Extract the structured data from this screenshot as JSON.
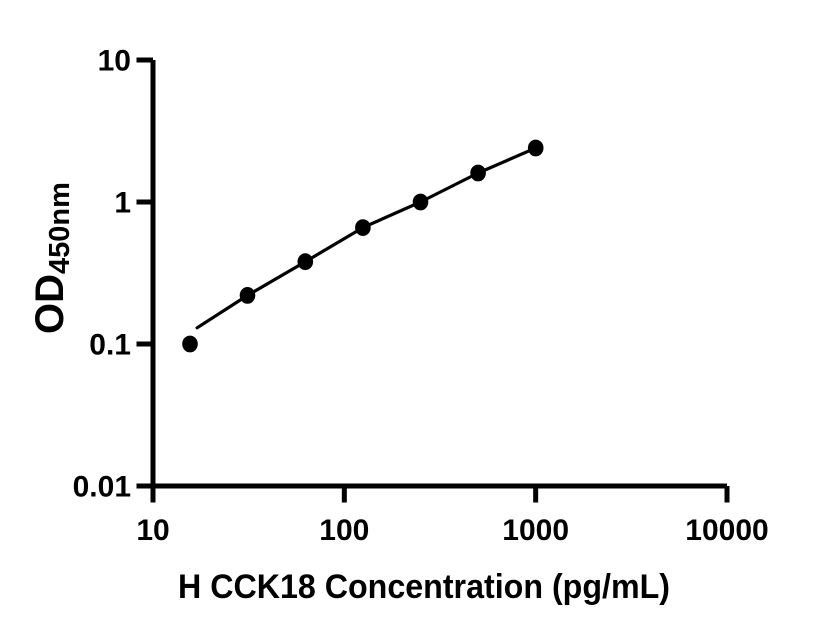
{
  "page": {
    "background": "#ffffff"
  },
  "chart_data": {
    "type": "scatter",
    "title": "",
    "xlabel": "H CCK18 Concentration (pg/mL)",
    "ylabel": "OD",
    "ylabel_subscript": "450nm",
    "x_scale": "log",
    "y_scale": "log",
    "xlim": [
      10,
      10000
    ],
    "ylim": [
      0.01,
      10
    ],
    "grid": false,
    "legend": "none",
    "axis_color": "#000000",
    "marker_color": "#000000",
    "line_color": "#000000",
    "x_ticks": {
      "values": [
        10,
        100,
        1000,
        10000
      ],
      "labels": [
        "10",
        "100",
        "1000",
        "10000"
      ]
    },
    "y_ticks": {
      "values": [
        10,
        1,
        0.1,
        0.01
      ],
      "labels": [
        "10",
        "1",
        "0.1",
        "0.01"
      ]
    },
    "series": [
      {
        "name": "standard-points",
        "type": "scatter",
        "marker": "filled-circle",
        "x": [
          15.6,
          31.2,
          62.5,
          125,
          250,
          500,
          1000
        ],
        "y": [
          0.1,
          0.22,
          0.38,
          0.66,
          1.0,
          1.6,
          2.4
        ]
      },
      {
        "name": "fit-line",
        "type": "line",
        "x": [
          17,
          31.2,
          62.5,
          125,
          250,
          500,
          1000
        ],
        "y": [
          0.13,
          0.22,
          0.38,
          0.66,
          1.0,
          1.6,
          2.4
        ]
      }
    ]
  }
}
